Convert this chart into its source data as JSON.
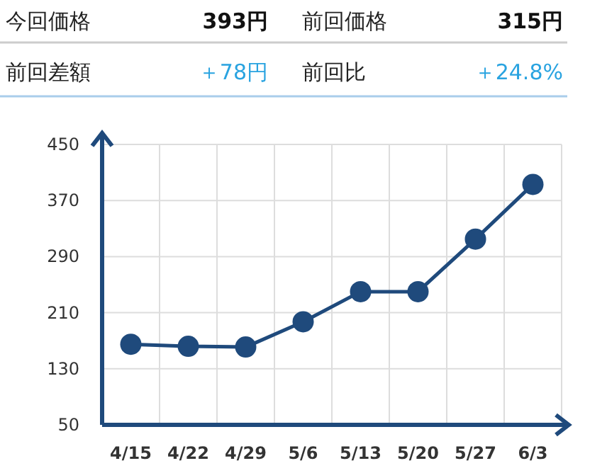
{
  "chart_data": [
    {
      "type": "other",
      "annotations": [
        "今回価格",
        "393円",
        "前回価格",
        "315円",
        "前回差額",
        "＋78円",
        "前回比",
        "＋24.8%"
      ]
    },
    {
      "type": "line",
      "categories": [
        "4/15",
        "4/22",
        "4/29",
        "5/6",
        "5/13",
        "5/20",
        "5/27",
        "6/3"
      ],
      "series": [
        {
          "color": "#1f4a7c",
          "values": [
            165,
            162,
            161,
            197,
            240,
            240,
            315,
            393
          ]
        }
      ],
      "ylim": [
        50,
        450
      ],
      "yticks": [
        50,
        130,
        210,
        290,
        370,
        450
      ],
      "grid": true,
      "marker": "circle",
      "line_style": "solid"
    }
  ]
}
